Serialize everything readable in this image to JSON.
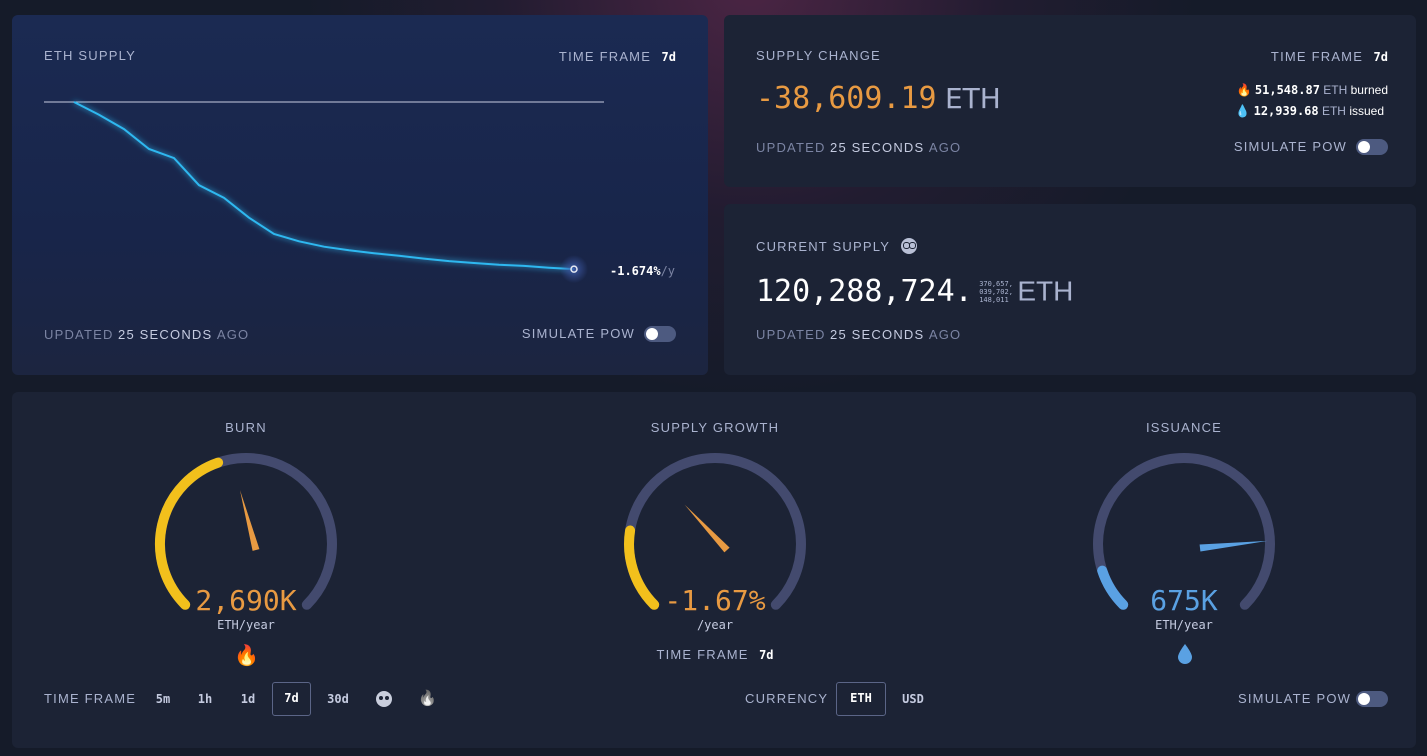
{
  "eth_supply": {
    "title": "ETH SUPPLY",
    "time_frame_label": "TIME FRAME",
    "time_frame_value": "7d",
    "rate": "-1.674%",
    "rate_unit": "/y",
    "updated_prefix": "UPDATED",
    "updated_value": "25 SECONDS",
    "updated_suffix": "AGO",
    "simulate_label": "SIMULATE PoW"
  },
  "supply_change": {
    "title": "SUPPLY CHANGE",
    "time_frame_label": "TIME FRAME",
    "time_frame_value": "7d",
    "amount": "-38,609.19",
    "unit": "ETH",
    "burned_value": "51,548.87",
    "burned_unit": "ETH",
    "burned_label": "burned",
    "issued_value": "12,939.68",
    "issued_unit": "ETH",
    "issued_label": "issued",
    "updated_prefix": "UPDATED",
    "updated_value": "25 SECONDS",
    "updated_suffix": "AGO",
    "simulate_label": "SIMULATE PoW"
  },
  "current_supply": {
    "title": "CURRENT SUPPLY",
    "integer": "120,288,724.",
    "decimals_line1": "370,657,",
    "decimals_line2": "039,702,",
    "decimals_line3": "148,011",
    "unit": "ETH",
    "updated_prefix": "UPDATED",
    "updated_value": "25 SECONDS",
    "updated_suffix": "AGO"
  },
  "gauges": {
    "burn": {
      "title": "BURN",
      "value": "2,690K",
      "unit": "ETH/year",
      "fill": 0.43
    },
    "supply_growth": {
      "title": "SUPPLY GROWTH",
      "value": "-1.67%",
      "unit": "/year",
      "time_frame_label": "TIME FRAME",
      "time_frame_value": "7d",
      "fill": 0.2
    },
    "issuance": {
      "title": "ISSUANCE",
      "value": "675K",
      "unit": "ETH/year",
      "fill": 0.1
    }
  },
  "controls": {
    "time_frame_label": "TIME FRAME",
    "time_frames": [
      "5m",
      "1h",
      "1d",
      "7d",
      "30d"
    ],
    "selected_time_frame": "7d",
    "currency_label": "CURRENCY",
    "currencies": [
      "ETH",
      "USD"
    ],
    "selected_currency": "ETH",
    "simulate_label": "SIMULATE PoW"
  },
  "colors": {
    "burn_orange": "#e89a42",
    "issuance_blue": "#5aa1e3",
    "line_cyan": "#2fb8f0",
    "gauge_track": "#434a6e",
    "gauge_yellow": "#f2c01c"
  },
  "chart_data": {
    "type": "line",
    "title": "ETH SUPPLY",
    "x": [
      0,
      1,
      2,
      3,
      4,
      5,
      6,
      7,
      8,
      9,
      10,
      11,
      12,
      13,
      14,
      15,
      16,
      17,
      18,
      19,
      20
    ],
    "y": [
      100,
      96.5,
      92.5,
      87,
      84.5,
      77,
      73.5,
      68,
      63.5,
      61.5,
      60,
      59,
      58.2,
      57.5,
      56.7,
      56,
      55.5,
      55,
      54.7,
      54.2,
      53.8
    ],
    "reference_line": 100,
    "end_label": "-1.674%/y",
    "grid": false
  }
}
